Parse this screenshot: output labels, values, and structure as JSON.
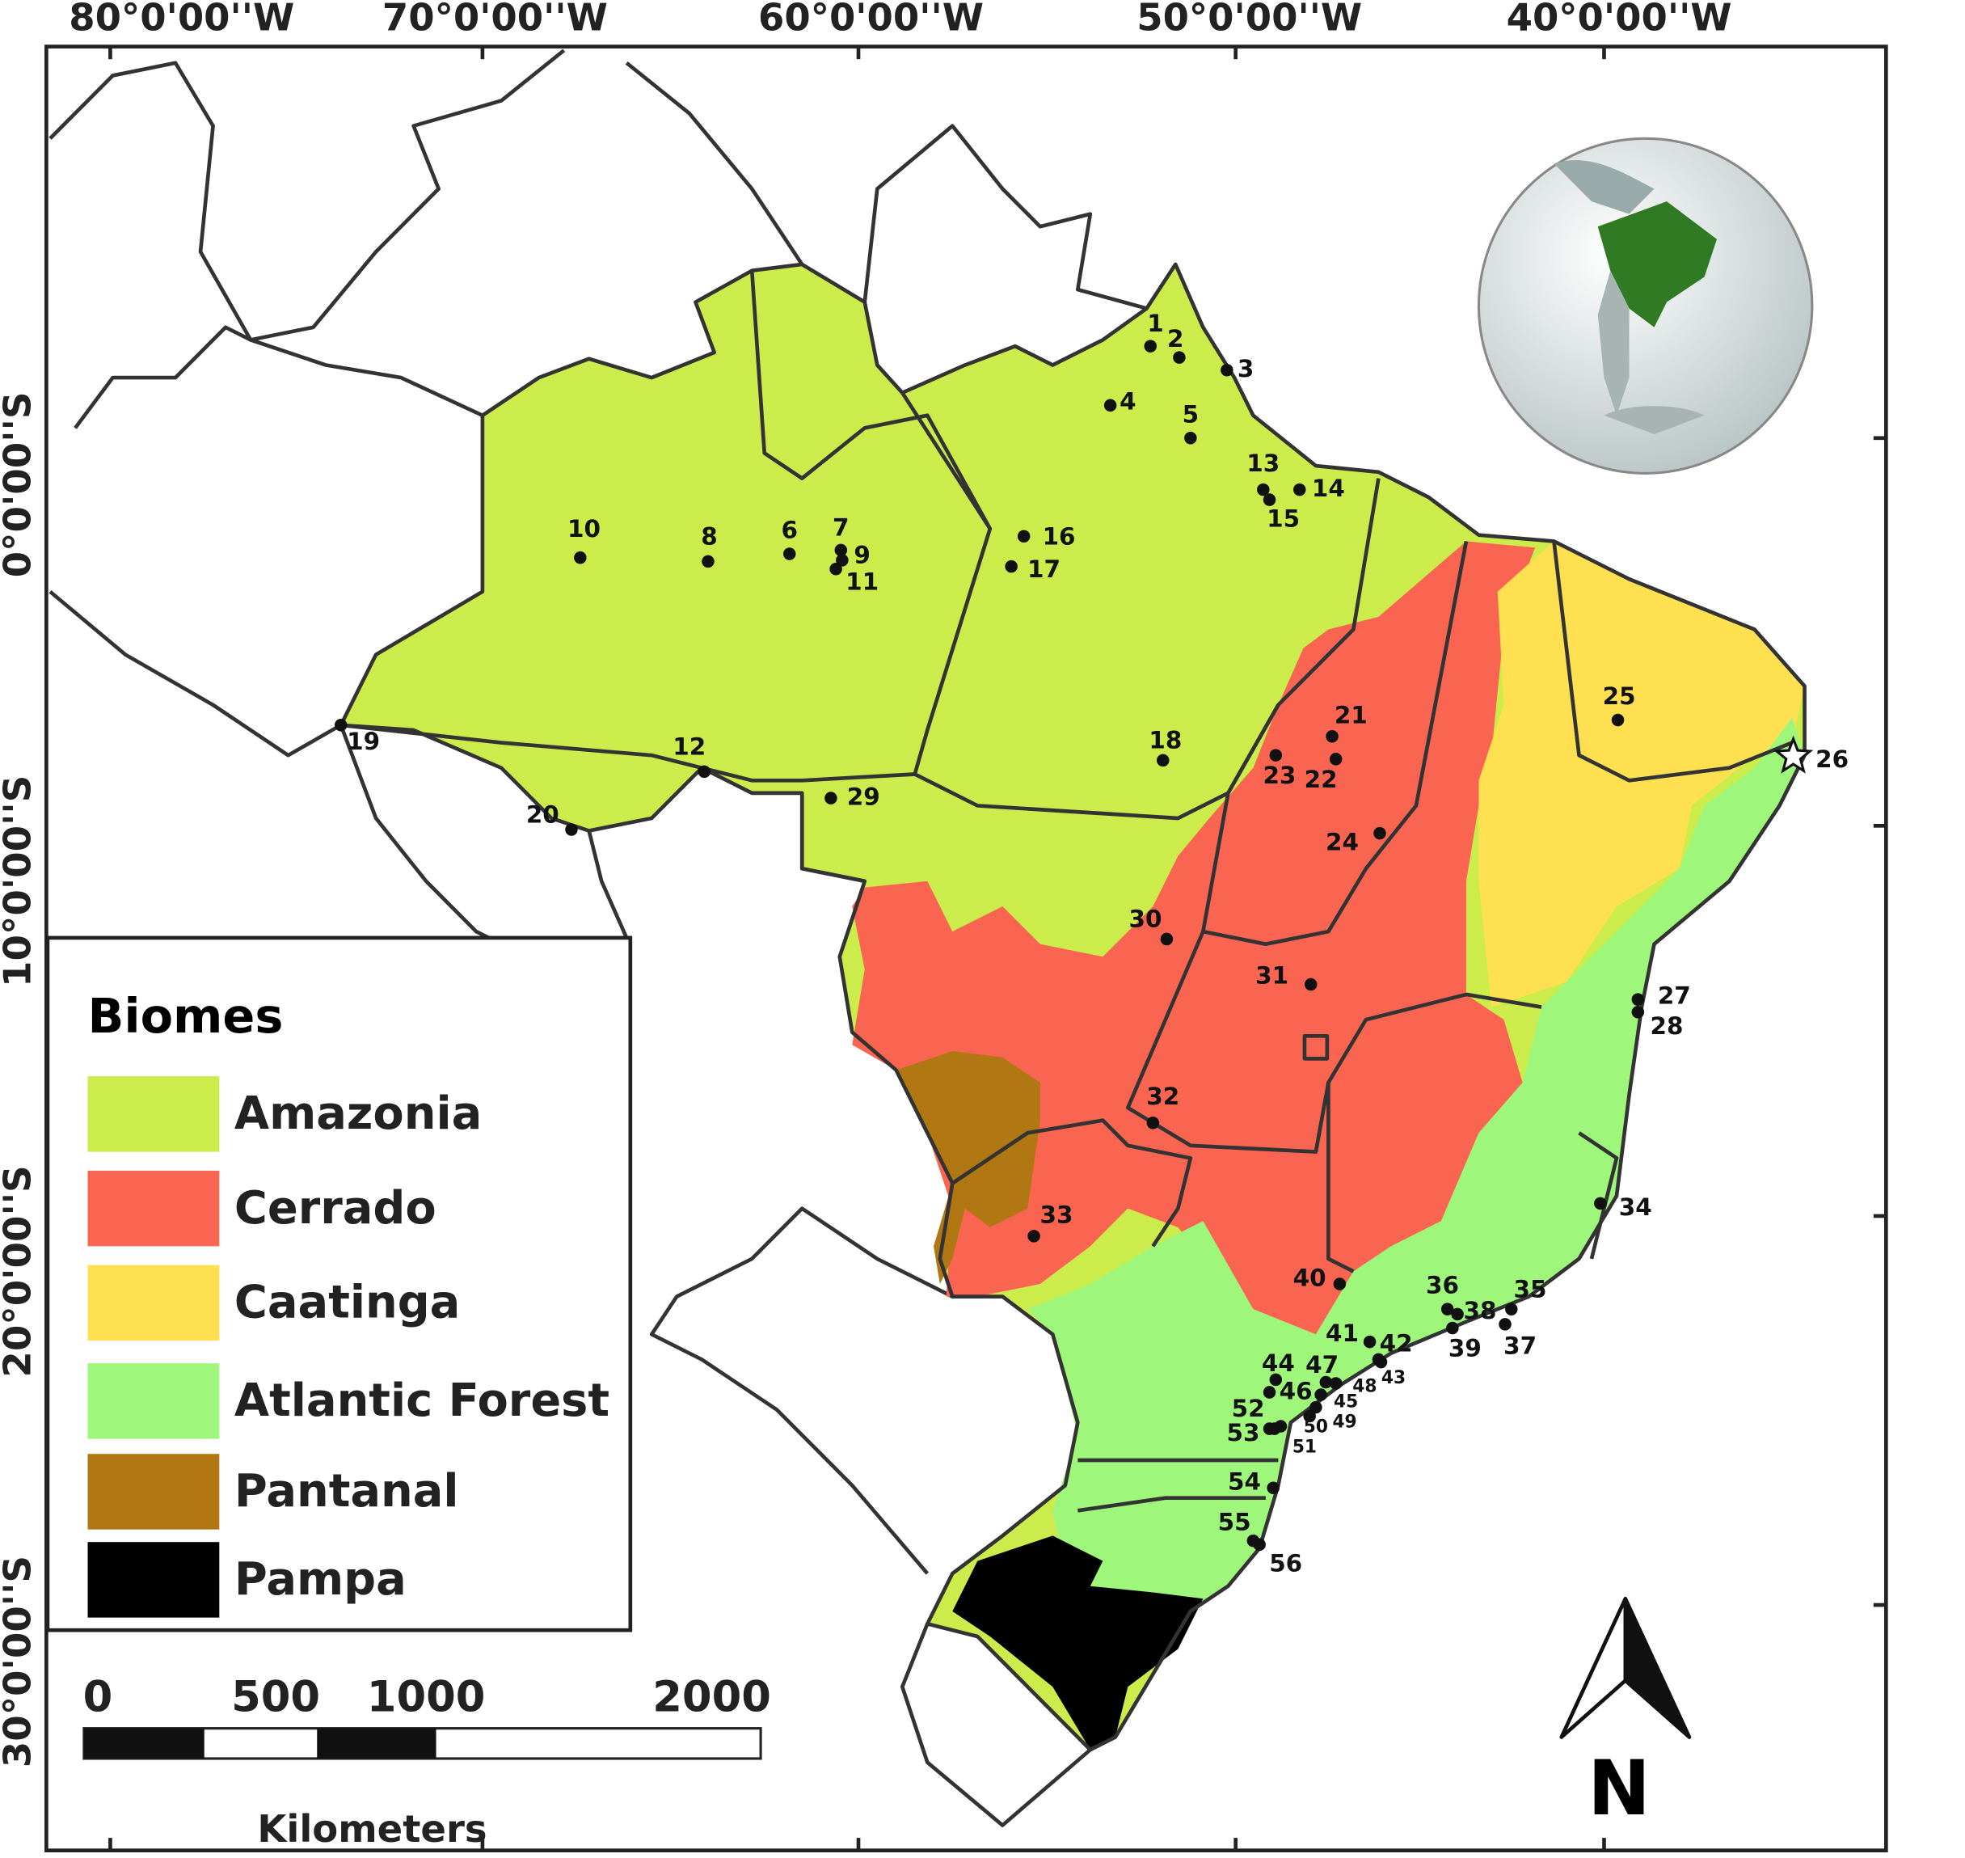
{
  "axes": {
    "longitude_labels": [
      "80°0'00''W",
      "70°0'00''W",
      "60°0'00''W",
      "50°0'00''W",
      "40°0'00''W"
    ],
    "latitude_labels": [
      "0°0'00''S",
      "10°0'00''S",
      "20°0'00''S",
      "30°0'00''S"
    ]
  },
  "legend": {
    "title": "Biomes",
    "items": [
      {
        "name": "Amazonia",
        "color": "#ccec4c"
      },
      {
        "name": "Cerrado",
        "color": "#fa6552"
      },
      {
        "name": "Caatinga",
        "color": "#ffe050"
      },
      {
        "name": "Atlantic Forest",
        "color": "#9ef77a"
      },
      {
        "name": "Pantanal",
        "color": "#b07712"
      },
      {
        "name": "Pampa",
        "color": "#000000"
      }
    ]
  },
  "scale_bar": {
    "labels": [
      "0",
      "500",
      "1000",
      "2000"
    ],
    "unit": "Kilometers"
  },
  "north_arrow": "N",
  "sites": [
    "1",
    "2",
    "3",
    "4",
    "5",
    "6",
    "7",
    "8",
    "9",
    "10",
    "11",
    "12",
    "13",
    "14",
    "15",
    "16",
    "17",
    "18",
    "19",
    "20",
    "21",
    "22",
    "23",
    "24",
    "25",
    "26",
    "27",
    "28",
    "29",
    "30",
    "31",
    "32",
    "33",
    "34",
    "35",
    "36",
    "37",
    "38",
    "39",
    "40",
    "41",
    "42",
    "43",
    "44",
    "45",
    "46",
    "47",
    "48",
    "49",
    "50",
    "51",
    "52",
    "53",
    "54",
    "55",
    "56"
  ]
}
